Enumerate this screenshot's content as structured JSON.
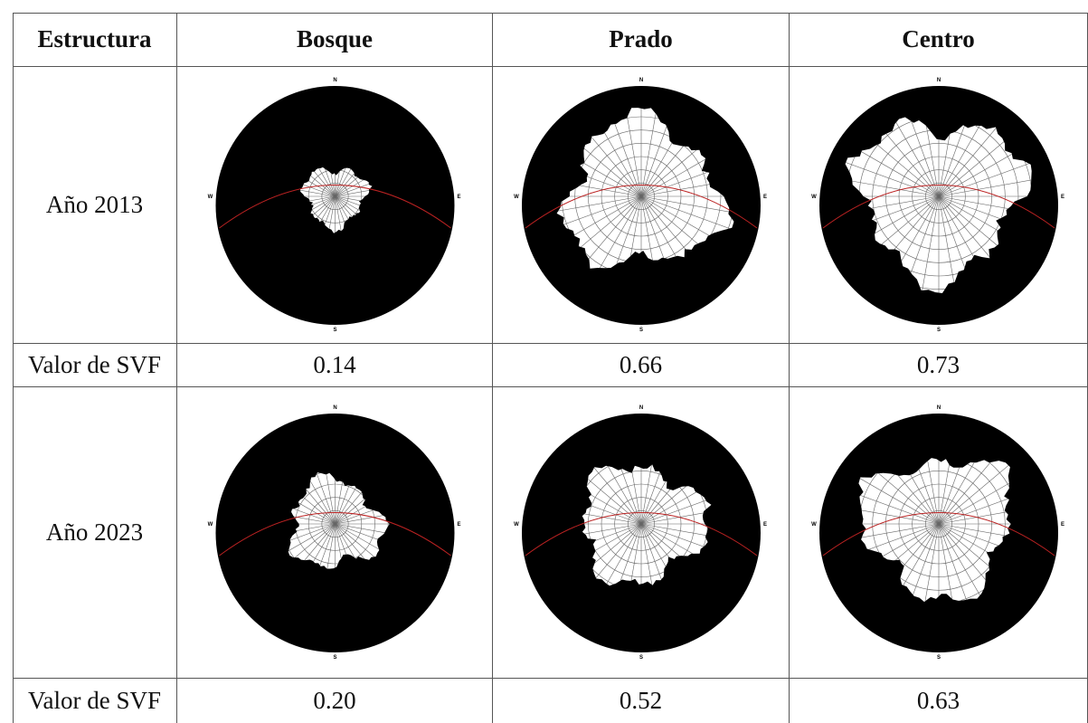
{
  "table": {
    "header": [
      "Estructura",
      "Bosque",
      "Prado",
      "Centro"
    ],
    "rows": [
      [
        "Año 2013"
      ],
      [
        "Valor de SVF",
        "0.14",
        "0.66",
        "0.73"
      ],
      [
        "Año 2023"
      ],
      [
        "Valor de SVF",
        "0.20",
        "0.52",
        "0.63"
      ]
    ]
  },
  "compass": [
    "N",
    "E",
    "S",
    "W"
  ]
}
